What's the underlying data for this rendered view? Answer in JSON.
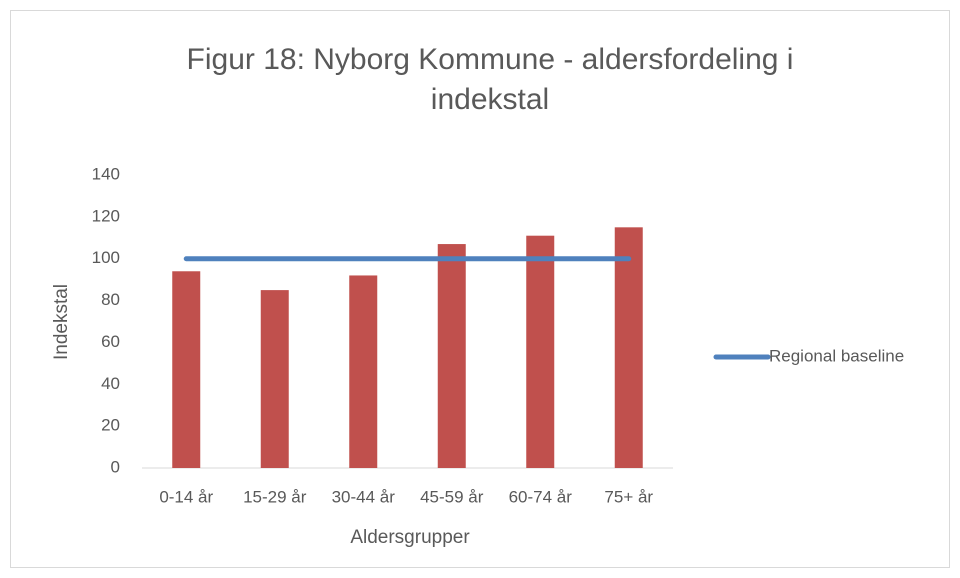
{
  "chart_data": {
    "type": "bar",
    "title": "Figur 18: Nyborg Kommune - aldersfordeling i indekstal",
    "x_label": "Aldersgrupper",
    "y_label": "Indekstal",
    "categories": [
      "0-14 år",
      "15-29 år",
      "30-44 år",
      "45-59 år",
      "60-74 år",
      "75+ år"
    ],
    "series": [
      {
        "type": "bar",
        "color": "#c0504d",
        "values": [
          94,
          85,
          92,
          107,
          111,
          115
        ]
      },
      {
        "type": "line",
        "name": "Regional baseline",
        "color": "#4f81bd",
        "values": [
          100,
          100,
          100,
          100,
          100,
          100
        ]
      }
    ],
    "ylim": [
      0,
      140
    ],
    "yticks": [
      0,
      20,
      40,
      60,
      80,
      100,
      120,
      140
    ],
    "grid": false,
    "legend": "right"
  }
}
